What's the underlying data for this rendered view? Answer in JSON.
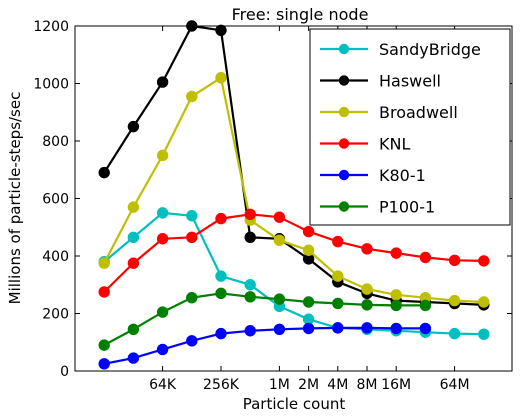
{
  "chart_data": {
    "type": "line",
    "title": "Free: single node",
    "xlabel": "Particle count",
    "ylabel": "Millions of particle-steps/sec",
    "x_ticks": [
      "64K",
      "256K",
      "1M",
      "2M",
      "4M",
      "8M",
      "16M",
      "64M"
    ],
    "ylim": [
      0,
      1200
    ],
    "y_ticks": [
      0,
      200,
      400,
      600,
      800,
      1000,
      1200
    ],
    "grid": false,
    "legend_position": "top-right",
    "series": [
      {
        "name": "SandyBridge",
        "color": "#00bfbf",
        "points": [
          [
            16,
            380
          ],
          [
            32,
            465
          ],
          [
            64,
            550
          ],
          [
            128,
            540
          ],
          [
            256,
            330
          ],
          [
            512,
            300
          ],
          [
            1024,
            225
          ],
          [
            2048,
            180
          ],
          [
            4096,
            150
          ],
          [
            8192,
            145
          ],
          [
            16384,
            140
          ],
          [
            32768,
            135
          ],
          [
            65536,
            130
          ],
          [
            131072,
            128
          ]
        ]
      },
      {
        "name": "Haswell",
        "color": "#000000",
        "points": [
          [
            16,
            690
          ],
          [
            32,
            850
          ],
          [
            64,
            1005
          ],
          [
            128,
            1200
          ],
          [
            256,
            1185
          ],
          [
            512,
            465
          ],
          [
            1024,
            460
          ],
          [
            2048,
            390
          ],
          [
            4096,
            310
          ],
          [
            8192,
            270
          ],
          [
            16384,
            245
          ],
          [
            32768,
            240
          ],
          [
            65536,
            235
          ],
          [
            131072,
            230
          ]
        ]
      },
      {
        "name": "Broadwell",
        "color": "#bfbf00",
        "points": [
          [
            16,
            375
          ],
          [
            32,
            570
          ],
          [
            64,
            750
          ],
          [
            128,
            955
          ],
          [
            256,
            1020
          ],
          [
            512,
            525
          ],
          [
            1024,
            455
          ],
          [
            2048,
            420
          ],
          [
            4096,
            330
          ],
          [
            8192,
            285
          ],
          [
            16384,
            265
          ],
          [
            32768,
            255
          ],
          [
            65536,
            245
          ],
          [
            131072,
            240
          ]
        ]
      },
      {
        "name": "KNL",
        "color": "#ff0000",
        "points": [
          [
            16,
            275
          ],
          [
            32,
            375
          ],
          [
            64,
            460
          ],
          [
            128,
            465
          ],
          [
            256,
            530
          ],
          [
            512,
            545
          ],
          [
            1024,
            535
          ],
          [
            2048,
            485
          ],
          [
            4096,
            450
          ],
          [
            8192,
            425
          ],
          [
            16384,
            410
          ],
          [
            32768,
            395
          ],
          [
            65536,
            385
          ],
          [
            131072,
            383
          ]
        ]
      },
      {
        "name": "K80-1",
        "color": "#0000ff",
        "points": [
          [
            16,
            25
          ],
          [
            32,
            45
          ],
          [
            64,
            75
          ],
          [
            128,
            105
          ],
          [
            256,
            130
          ],
          [
            512,
            140
          ],
          [
            1024,
            145
          ],
          [
            2048,
            148
          ],
          [
            4096,
            150
          ],
          [
            8192,
            150
          ],
          [
            16384,
            148
          ],
          [
            32768,
            148
          ]
        ]
      },
      {
        "name": "P100-1",
        "color": "#008000",
        "points": [
          [
            16,
            90
          ],
          [
            32,
            145
          ],
          [
            64,
            205
          ],
          [
            128,
            255
          ],
          [
            256,
            270
          ],
          [
            512,
            258
          ],
          [
            1024,
            250
          ],
          [
            2048,
            240
          ],
          [
            4096,
            235
          ],
          [
            8192,
            230
          ],
          [
            16384,
            228
          ],
          [
            32768,
            228
          ]
        ]
      }
    ]
  }
}
